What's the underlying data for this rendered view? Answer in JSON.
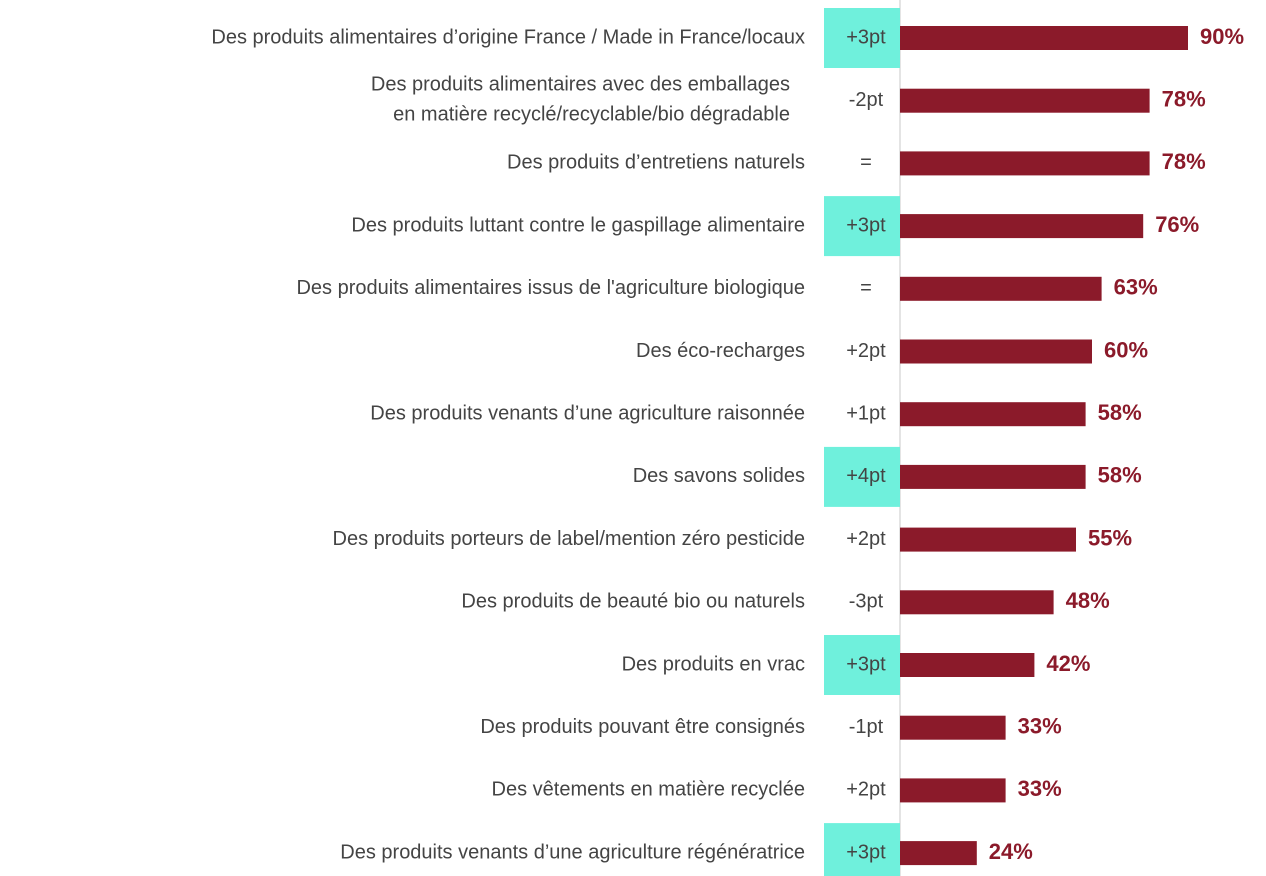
{
  "chart_data": {
    "type": "hbar",
    "categories": [
      "Des produits alimentaires d’origine France / Made in France/locaux",
      [
        "Des produits alimentaires avec des emballages",
        "en matière recyclé/recyclable/bio dégradable"
      ],
      "Des produits d’entretiens naturels",
      "Des produits luttant contre le gaspillage alimentaire",
      "Des produits alimentaires issus de l'agriculture biologique",
      "Des éco-recharges",
      "Des produits venants d’une agriculture raisonnée",
      "Des savons solides",
      "Des produits porteurs de label/mention zéro pesticide",
      "Des produits de beauté bio ou naturels",
      "Des produits en vrac",
      "Des produits pouvant être consignés",
      "Des vêtements en matière recyclée",
      "Des produits venants d’une agriculture régénératrice"
    ],
    "values": [
      90,
      78,
      78,
      76,
      63,
      60,
      58,
      58,
      55,
      48,
      42,
      33,
      33,
      24
    ],
    "value_labels": [
      "90%",
      "78%",
      "78%",
      "76%",
      "63%",
      "60%",
      "58%",
      "58%",
      "55%",
      "48%",
      "42%",
      "33%",
      "33%",
      "24%"
    ],
    "deltas": [
      "+3pt",
      "-2pt",
      "=",
      "+3pt",
      "=",
      "+2pt",
      "+1pt",
      "+4pt",
      "+2pt",
      "-3pt",
      "+3pt",
      "-1pt",
      "+2pt",
      "+3pt"
    ],
    "delta_highlight": [
      true,
      false,
      false,
      true,
      false,
      false,
      false,
      true,
      false,
      false,
      true,
      false,
      false,
      true
    ],
    "highlight_color": "#6ff0dc",
    "color": "#8b1a2a",
    "xlim": [
      0,
      100
    ]
  }
}
